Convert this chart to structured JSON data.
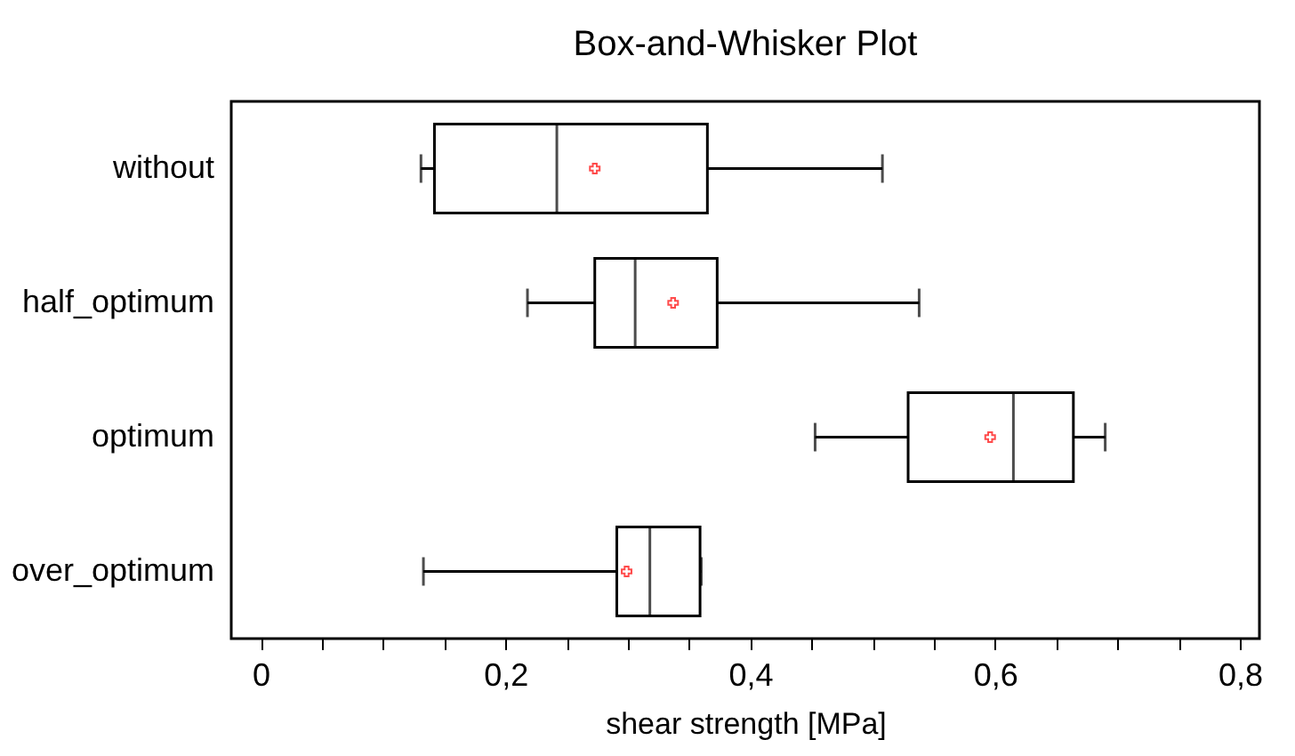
{
  "chart_data": {
    "type": "box",
    "orientation": "horizontal",
    "title": "Box-and-Whisker Plot",
    "xlabel": "shear strength [MPa]",
    "categories": [
      "without",
      "half_optimum",
      "optimum",
      "over_optimum"
    ],
    "boxes": [
      {
        "low": 0.131,
        "q1": 0.142,
        "median": 0.242,
        "q3": 0.365,
        "high": 0.508,
        "mean": 0.273
      },
      {
        "low": 0.218,
        "q1": 0.273,
        "median": 0.306,
        "q3": 0.373,
        "high": 0.538,
        "mean": 0.337
      },
      {
        "low": 0.453,
        "q1": 0.529,
        "median": 0.615,
        "q3": 0.664,
        "high": 0.69,
        "mean": 0.596
      },
      {
        "low": 0.133,
        "q1": 0.291,
        "median": 0.318,
        "q3": 0.359,
        "high": 0.36,
        "mean": 0.299
      }
    ],
    "xlim": [
      -0.024,
      0.816
    ],
    "xticks": [
      {
        "value": 0,
        "label": "0"
      },
      {
        "value": 0.05,
        "label": null
      },
      {
        "value": 0.1,
        "label": null
      },
      {
        "value": 0.15,
        "label": null
      },
      {
        "value": 0.2,
        "label": "0,2"
      },
      {
        "value": 0.25,
        "label": null
      },
      {
        "value": 0.3,
        "label": null
      },
      {
        "value": 0.35,
        "label": null
      },
      {
        "value": 0.4,
        "label": "0,4"
      },
      {
        "value": 0.45,
        "label": null
      },
      {
        "value": 0.5,
        "label": null
      },
      {
        "value": 0.55,
        "label": null
      },
      {
        "value": 0.6,
        "label": "0,6"
      },
      {
        "value": 0.65,
        "label": null
      },
      {
        "value": 0.7,
        "label": null
      },
      {
        "value": 0.75,
        "label": null
      },
      {
        "value": 0.8,
        "label": "0,8"
      }
    ],
    "grid": false
  }
}
